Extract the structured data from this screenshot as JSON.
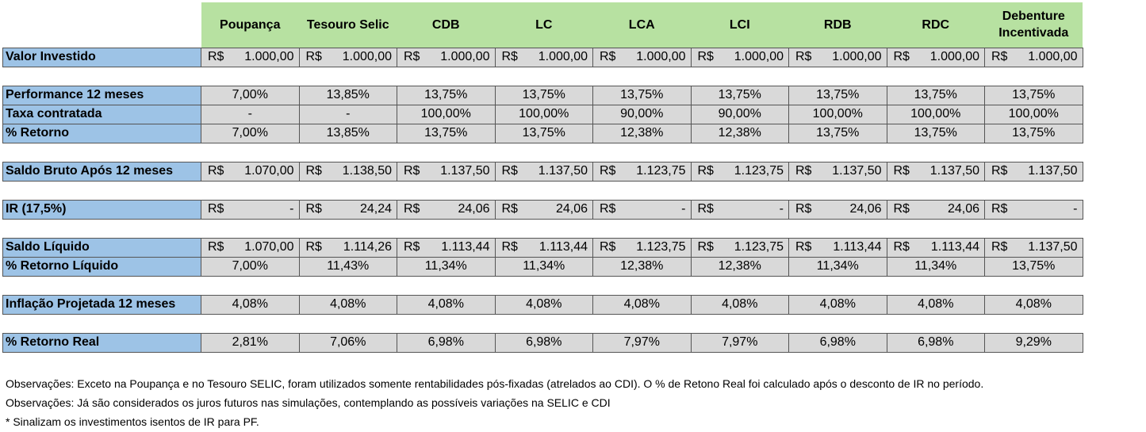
{
  "table": {
    "columns": [
      "Poupança",
      "Tesouro Selic",
      "CDB",
      "LC",
      "LCA",
      "LCI",
      "RDB",
      "RDC",
      "Debenture Incentivada"
    ],
    "groups": [
      [
        {
          "label": "Valor Investido",
          "cells": [
            {
              "currency": "R$",
              "amount": "1.000,00"
            },
            {
              "currency": "R$",
              "amount": "1.000,00"
            },
            {
              "currency": "R$",
              "amount": "1.000,00"
            },
            {
              "currency": "R$",
              "amount": "1.000,00"
            },
            {
              "currency": "R$",
              "amount": "1.000,00"
            },
            {
              "currency": "R$",
              "amount": "1.000,00"
            },
            {
              "currency": "R$",
              "amount": "1.000,00"
            },
            {
              "currency": "R$",
              "amount": "1.000,00"
            },
            {
              "currency": "R$",
              "amount": "1.000,00"
            }
          ]
        }
      ],
      [
        {
          "label": "Performance 12 meses",
          "cells": [
            "7,00%",
            "13,85%",
            "13,75%",
            "13,75%",
            "13,75%",
            "13,75%",
            "13,75%",
            "13,75%",
            "13,75%"
          ]
        },
        {
          "label": "Taxa contratada",
          "cells": [
            "-",
            "-",
            "100,00%",
            "100,00%",
            "90,00%",
            "90,00%",
            "100,00%",
            "100,00%",
            "100,00%"
          ]
        },
        {
          "label": "% Retorno",
          "cells": [
            "7,00%",
            "13,85%",
            "13,75%",
            "13,75%",
            "12,38%",
            "12,38%",
            "13,75%",
            "13,75%",
            "13,75%"
          ]
        }
      ],
      [
        {
          "label": "Saldo Bruto Após 12 meses",
          "cells": [
            {
              "currency": "R$",
              "amount": "1.070,00"
            },
            {
              "currency": "R$",
              "amount": "1.138,50"
            },
            {
              "currency": "R$",
              "amount": "1.137,50"
            },
            {
              "currency": "R$",
              "amount": "1.137,50"
            },
            {
              "currency": "R$",
              "amount": "1.123,75"
            },
            {
              "currency": "R$",
              "amount": "1.123,75"
            },
            {
              "currency": "R$",
              "amount": "1.137,50"
            },
            {
              "currency": "R$",
              "amount": "1.137,50"
            },
            {
              "currency": "R$",
              "amount": "1.137,50"
            }
          ]
        }
      ],
      [
        {
          "label": "IR (17,5%)",
          "cells": [
            {
              "currency": "R$",
              "amount": "-"
            },
            {
              "currency": "R$",
              "amount": "24,24"
            },
            {
              "currency": "R$",
              "amount": "24,06"
            },
            {
              "currency": "R$",
              "amount": "24,06"
            },
            {
              "currency": "R$",
              "amount": "-"
            },
            {
              "currency": "R$",
              "amount": "-"
            },
            {
              "currency": "R$",
              "amount": "24,06"
            },
            {
              "currency": "R$",
              "amount": "24,06"
            },
            {
              "currency": "R$",
              "amount": "-"
            }
          ]
        }
      ],
      [
        {
          "label": "Saldo Líquido",
          "cells": [
            {
              "currency": "R$",
              "amount": "1.070,00"
            },
            {
              "currency": "R$",
              "amount": "1.114,26"
            },
            {
              "currency": "R$",
              "amount": "1.113,44"
            },
            {
              "currency": "R$",
              "amount": "1.113,44"
            },
            {
              "currency": "R$",
              "amount": "1.123,75"
            },
            {
              "currency": "R$",
              "amount": "1.123,75"
            },
            {
              "currency": "R$",
              "amount": "1.113,44"
            },
            {
              "currency": "R$",
              "amount": "1.113,44"
            },
            {
              "currency": "R$",
              "amount": "1.137,50"
            }
          ]
        },
        {
          "label": "% Retorno Líquido",
          "cells": [
            "7,00%",
            "11,43%",
            "11,34%",
            "11,34%",
            "12,38%",
            "12,38%",
            "11,34%",
            "11,34%",
            "13,75%"
          ]
        }
      ],
      [
        {
          "label": "Inflação Projetada 12 meses",
          "cells": [
            "4,08%",
            "4,08%",
            "4,08%",
            "4,08%",
            "4,08%",
            "4,08%",
            "4,08%",
            "4,08%",
            "4,08%"
          ]
        }
      ],
      [
        {
          "label": "% Retorno Real",
          "cells": [
            "2,81%",
            "7,06%",
            "6,98%",
            "6,98%",
            "7,97%",
            "7,97%",
            "6,98%",
            "6,98%",
            "9,29%"
          ]
        }
      ]
    ]
  },
  "notes": [
    "Observações: Exceto na Poupança e no Tesouro SELIC, foram utilizados somente rentabilidades pós-fixadas (atrelados ao CDI). O % de Retono Real foi calculado após o desconto de IR no período.",
    "Observações: Já são considerados os juros futuros nas simulações, contemplando as possíveis variações na SELIC e CDI",
    "* Sinalizam os investimentos isentos de IR para PF."
  ]
}
